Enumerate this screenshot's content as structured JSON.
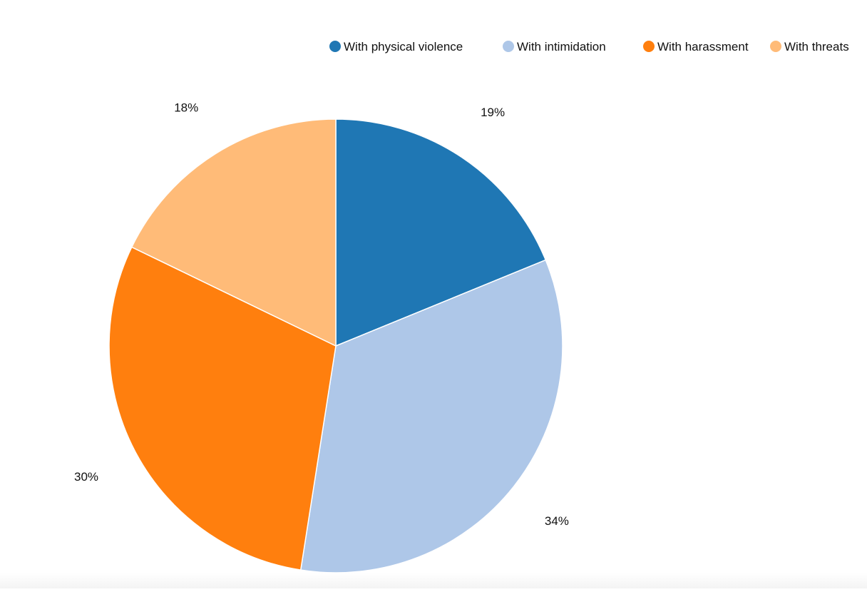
{
  "chart_data": {
    "type": "pie",
    "title": "",
    "legend_position": "top-right",
    "series": [
      {
        "name": "",
        "values": [
          {
            "label": "With physical violence",
            "value": 19,
            "display": "19%",
            "color": "#1f77b4"
          },
          {
            "label": "With intimidation",
            "value": 34,
            "display": "34%",
            "color": "#aec7e8"
          },
          {
            "label": "With harassment",
            "value": 30,
            "display": "30%",
            "color": "#ff7f0e"
          },
          {
            "label": "With threats",
            "value": 18,
            "display": "18%",
            "color": "#ffbb78"
          }
        ]
      }
    ]
  }
}
